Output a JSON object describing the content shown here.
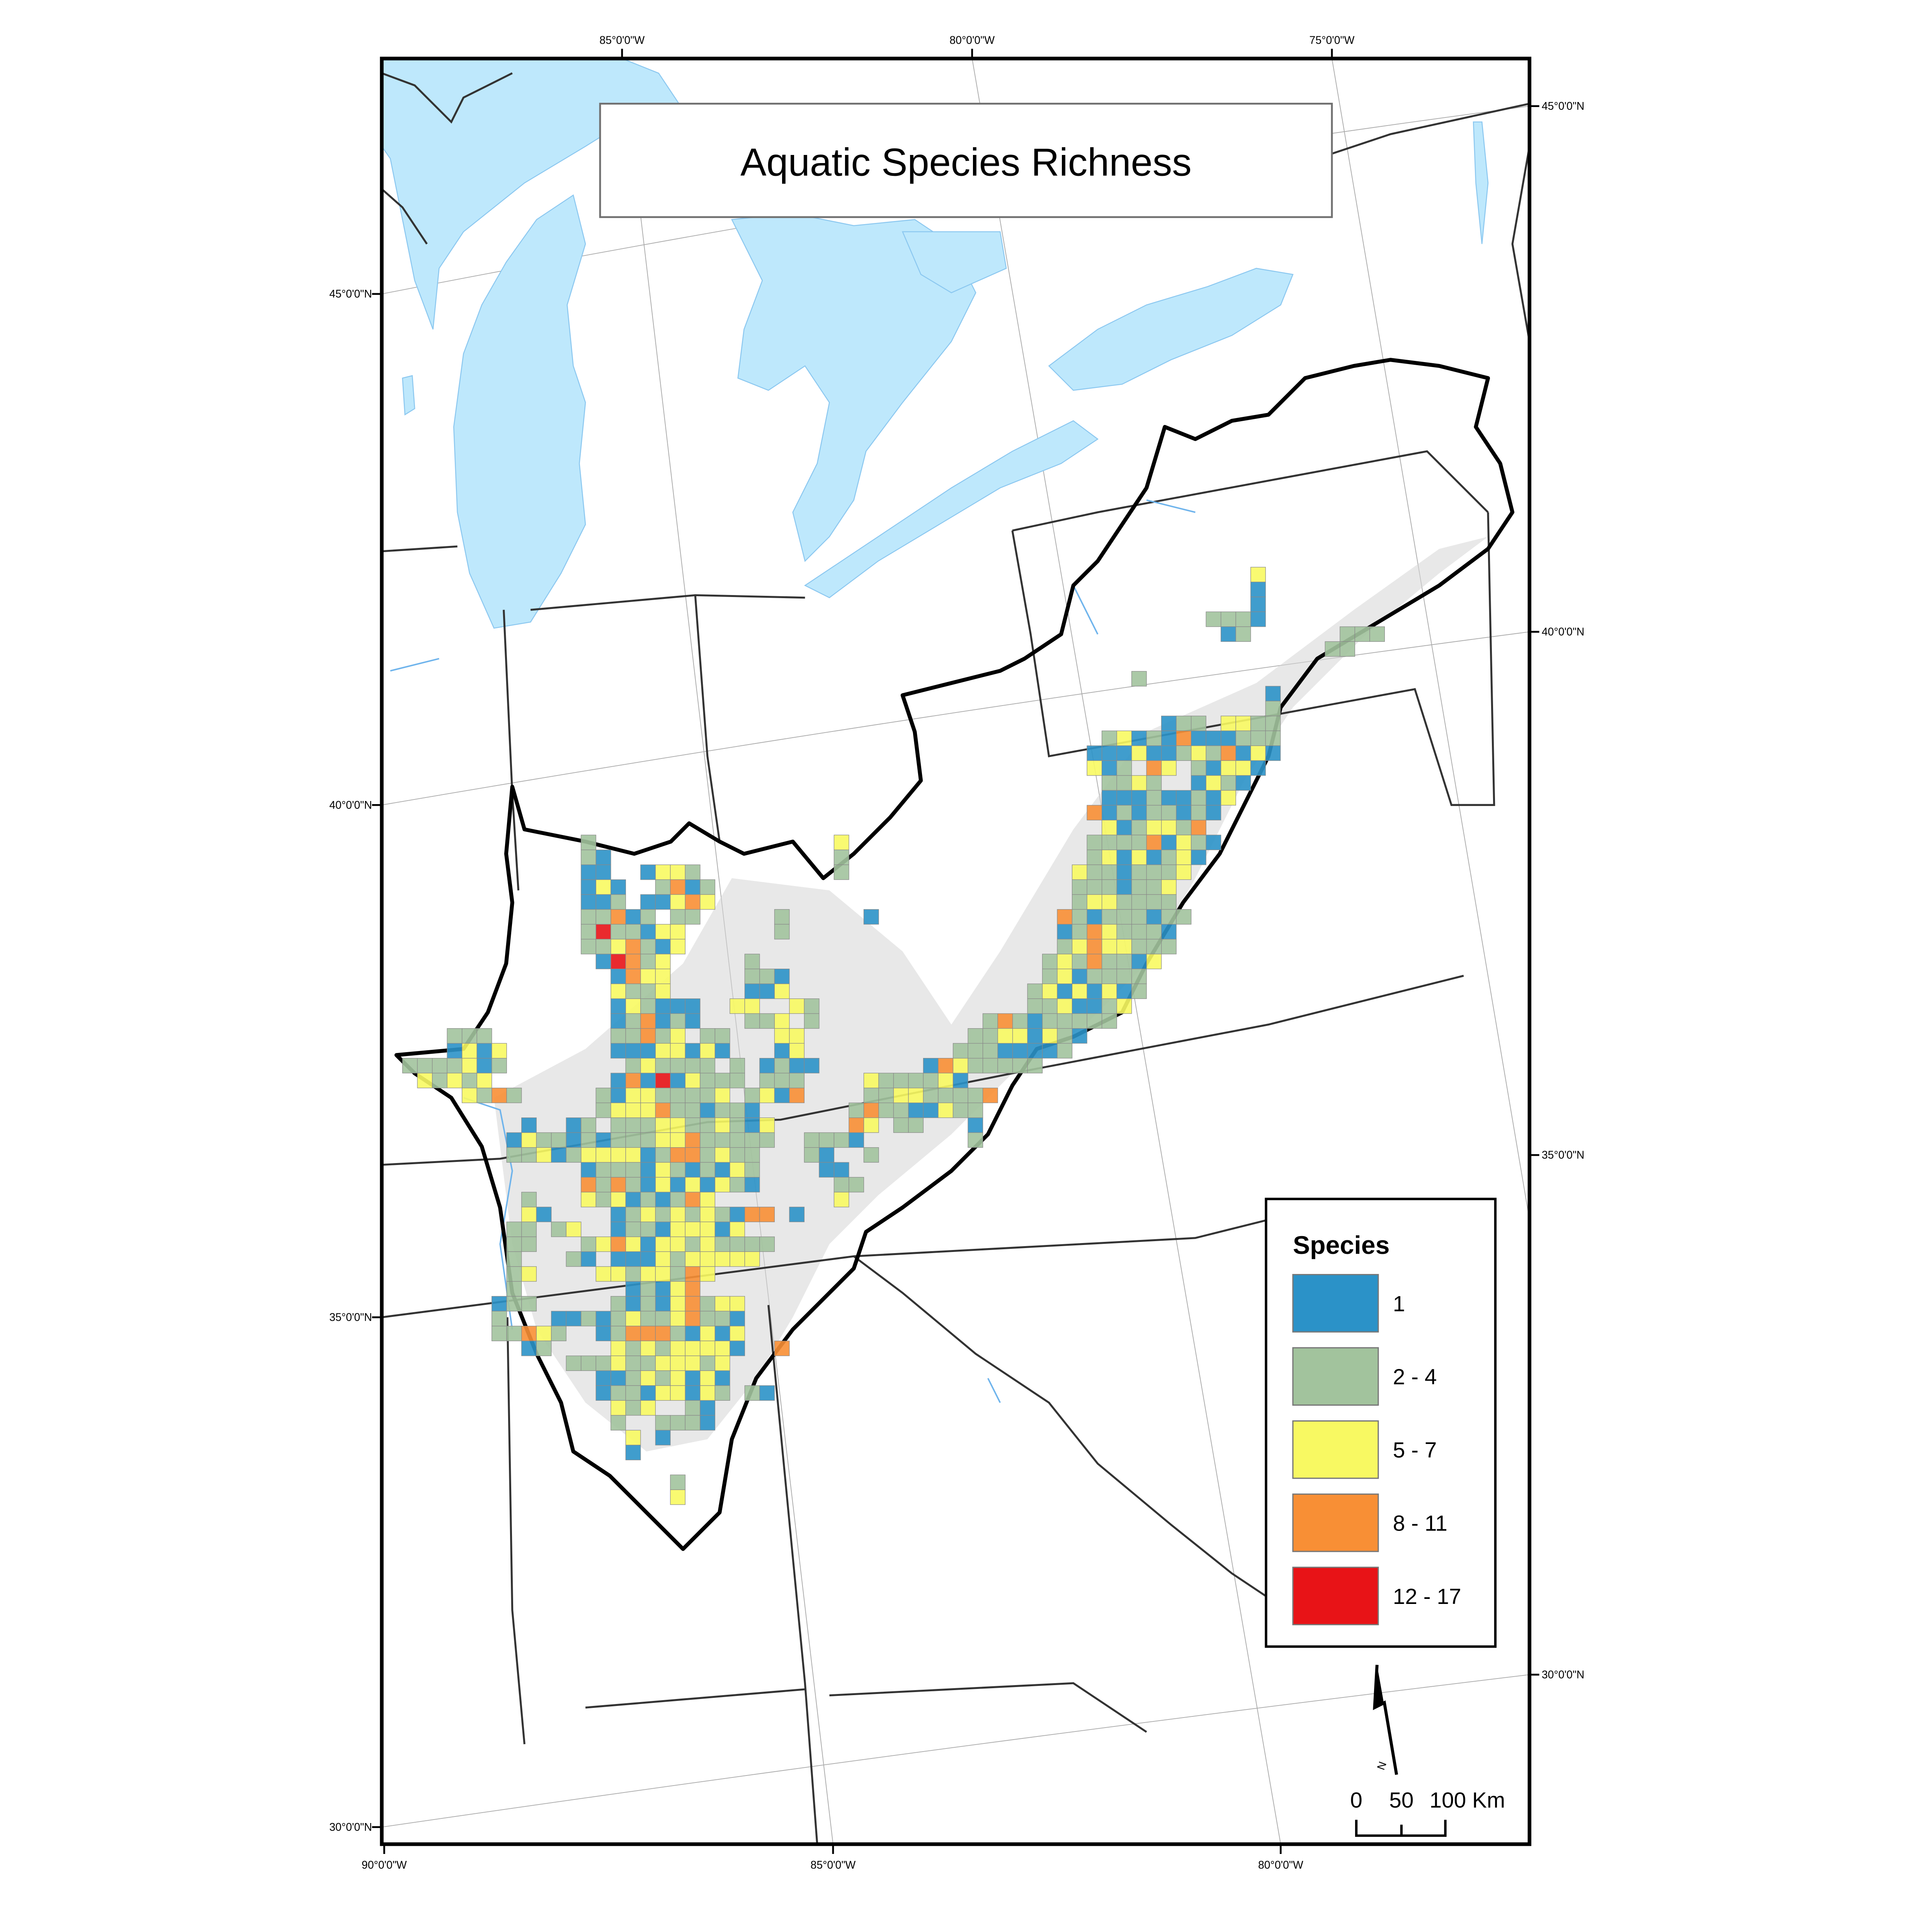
{
  "title": "Aquatic Species Richness",
  "graticule": {
    "top": [
      "85°0'0\"W",
      "80°0'0\"W",
      "75°0'0\"W"
    ],
    "bottom": [
      "90°0'0\"W",
      "85°0'0\"W",
      "80°0'0\"W"
    ],
    "left": [
      "45°0'0\"N",
      "40°0'0\"N",
      "35°0'0\"N",
      "30°0'0\"N"
    ],
    "right": [
      "45°0'0\"N",
      "40°0'0\"N",
      "35°0'0\"N",
      "30°0'0\"N"
    ]
  },
  "legend": {
    "title": "Species",
    "classes": [
      {
        "label": "1",
        "color": "#2b92c8"
      },
      {
        "label": "2 - 4",
        "color": "#a2c39d"
      },
      {
        "label": "5 - 7",
        "color": "#f8f962"
      },
      {
        "label": "8 - 11",
        "color": "#f88f35"
      },
      {
        "label": "12 - 17",
        "color": "#e81317"
      }
    ]
  },
  "north_arrow": {
    "label": "N"
  },
  "scale_bar": {
    "ticks": [
      "0",
      "50",
      "100 Km"
    ]
  },
  "colors": {
    "water": "#bee8fc",
    "ridges": "#d6d6d6",
    "region_outline": "#000000"
  }
}
